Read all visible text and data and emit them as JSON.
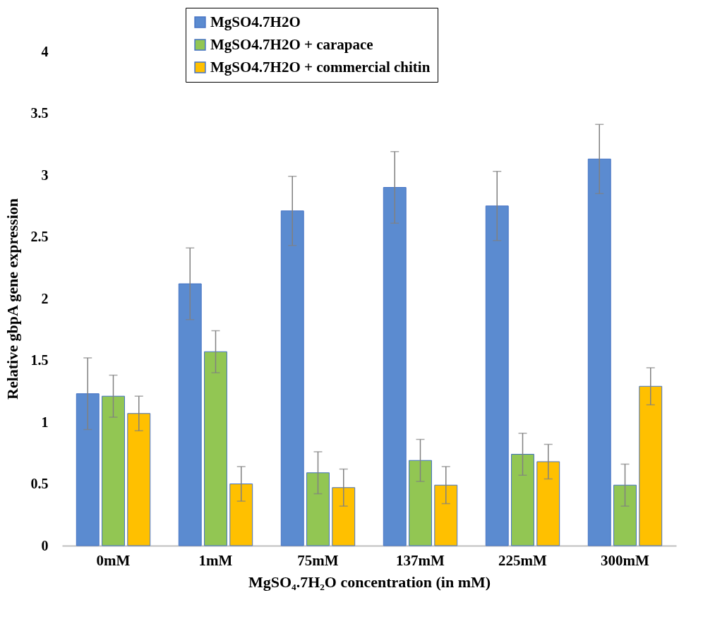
{
  "chart_data": {
    "type": "bar",
    "xlabel": "MgSO₄.7H₂O concentration  (in mM)",
    "ylabel": "Relative gbpA  gene expression",
    "categories": [
      "0mM",
      "1mM",
      "75mM",
      "137mM",
      "225mM",
      "300mM"
    ],
    "series": [
      {
        "name": "MgSO4.7H2O",
        "color": "#5b8bd0",
        "values": [
          1.23,
          2.12,
          2.71,
          2.9,
          2.75,
          3.13
        ],
        "errors": [
          0.29,
          0.29,
          0.28,
          0.29,
          0.28,
          0.28
        ]
      },
      {
        "name": "MgSO4.7H2O + carapace",
        "color": "#92c653",
        "values": [
          1.21,
          1.57,
          0.59,
          0.69,
          0.74,
          0.49
        ],
        "errors": [
          0.17,
          0.17,
          0.17,
          0.17,
          0.17,
          0.17
        ]
      },
      {
        "name": "MgSO4.7H2O + commercial chitin",
        "color": "#ffc000",
        "values": [
          1.07,
          0.5,
          0.47,
          0.49,
          0.68,
          1.29
        ],
        "errors": [
          0.14,
          0.14,
          0.15,
          0.15,
          0.14,
          0.15
        ]
      }
    ],
    "ylim": [
      0,
      4
    ],
    "yticks": [
      0,
      0.5,
      1,
      1.5,
      2,
      2.5,
      3,
      3.5,
      4
    ],
    "legend": "top",
    "grid": false
  }
}
